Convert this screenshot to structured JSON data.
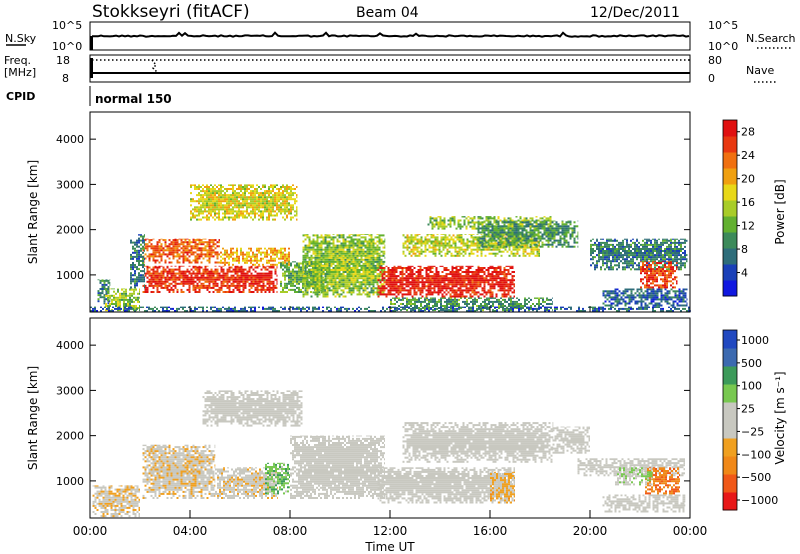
{
  "header": {
    "title": "Stokkseyri (fitACF)",
    "beam": "Beam 04",
    "date": "12/Dec/2011"
  },
  "strip_panels": {
    "nsky_label": "N.Sky",
    "nsky_ticks": [
      "10^5",
      "10^0"
    ],
    "nsearch_label": "N.Search",
    "nsearch_ticks": [
      "10^5",
      "10^0"
    ],
    "freq_label_line1": "Freq.",
    "freq_label_line2": "[MHz]",
    "freq_ticks": [
      "18",
      "8"
    ],
    "nave_label": "Nave",
    "nave_ticks": [
      "80",
      "0"
    ],
    "cpid_label": "CPID",
    "cpid_value": "normal 150"
  },
  "chart_data": [
    {
      "type": "heatmap",
      "title": "",
      "ylabel": "Slant Range [km]",
      "xlabel": "",
      "y_ticks": [
        "1000",
        "2000",
        "3000",
        "4000"
      ],
      "ylim": [
        180,
        4600
      ],
      "xlim": [
        0,
        24
      ],
      "colorbar_label": "Power [dB]",
      "colorbar_ticks": [
        "4",
        "8",
        "12",
        "16",
        "20",
        "24",
        "28"
      ],
      "colorbar_range": [
        0,
        30
      ],
      "colorbar_colors": [
        "#1018e0",
        "#1a40b8",
        "#2e6d7a",
        "#3c8a5a",
        "#62b030",
        "#a8cc28",
        "#e8d818",
        "#f0a010",
        "#f07010",
        "#e83810",
        "#e01010"
      ],
      "echo_regions": [
        {
          "t0": 0.3,
          "t1": 0.8,
          "r0": 350,
          "r1": 900,
          "db": 8
        },
        {
          "t0": 0.6,
          "t1": 2.0,
          "r0": 200,
          "r1": 700,
          "db": 14
        },
        {
          "t0": 2.1,
          "t1": 7.5,
          "r0": 600,
          "r1": 1200,
          "db": 27
        },
        {
          "t0": 2.1,
          "t1": 5.2,
          "r0": 1250,
          "r1": 1800,
          "db": 24
        },
        {
          "t0": 5.2,
          "t1": 8.0,
          "r0": 1200,
          "r1": 1600,
          "db": 20
        },
        {
          "t0": 1.6,
          "t1": 2.2,
          "r0": 700,
          "r1": 1900,
          "db": 8
        },
        {
          "t0": 7.6,
          "t1": 9.5,
          "r0": 600,
          "r1": 1300,
          "db": 12
        },
        {
          "t0": 4.0,
          "t1": 8.3,
          "r0": 2200,
          "r1": 3000,
          "db": 17
        },
        {
          "t0": 8.5,
          "t1": 11.8,
          "r0": 500,
          "r1": 1900,
          "db": 14
        },
        {
          "t0": 11.5,
          "t1": 17.0,
          "r0": 500,
          "r1": 1200,
          "db": 28
        },
        {
          "t0": 12.5,
          "t1": 18.0,
          "r0": 1400,
          "r1": 1900,
          "db": 16
        },
        {
          "t0": 13.5,
          "t1": 18.5,
          "r0": 2000,
          "r1": 2300,
          "db": 14
        },
        {
          "t0": 15.5,
          "t1": 19.5,
          "r0": 1600,
          "r1": 2200,
          "db": 10
        },
        {
          "t0": 12.0,
          "t1": 18.5,
          "r0": 200,
          "r1": 500,
          "db": 10
        },
        {
          "t0": 20.0,
          "t1": 23.9,
          "r0": 1100,
          "r1": 1800,
          "db": 8
        },
        {
          "t0": 22.0,
          "t1": 23.5,
          "r0": 700,
          "r1": 1300,
          "db": 26
        },
        {
          "t0": 20.5,
          "t1": 23.9,
          "r0": 300,
          "r1": 700,
          "db": 6
        },
        {
          "t0": 0.0,
          "t1": 24.0,
          "r0": 180,
          "r1": 300,
          "db": 6
        }
      ]
    },
    {
      "type": "heatmap",
      "title": "",
      "ylabel": "Slant Range [km]",
      "xlabel": "Time UT",
      "x_ticks": [
        "00:00",
        "04:00",
        "08:00",
        "12:00",
        "16:00",
        "20:00",
        "00:00"
      ],
      "y_ticks": [
        "1000",
        "2000",
        "3000",
        "4000"
      ],
      "ylim": [
        180,
        4600
      ],
      "xlim": [
        0,
        24
      ],
      "colorbar_label": "Velocity [m s⁻¹]",
      "colorbar_ticks": [
        "1000",
        "500",
        "100",
        "25",
        "−25",
        "−100",
        "−500",
        "−1000"
      ],
      "colorbar_range": [
        -1200,
        1200
      ],
      "colorbar_colors": [
        "#e81818",
        "#f05818",
        "#f08818",
        "#f0a020",
        "#c8c8c0",
        "#c8c8c0",
        "#78c850",
        "#3c9a5a",
        "#3c6ab0",
        "#2048c0"
      ],
      "echo_regions": [
        {
          "t0": 0.1,
          "t1": 2.0,
          "r0": 200,
          "r1": 900,
          "v": -150
        },
        {
          "t0": 2.1,
          "t1": 5.0,
          "r0": 600,
          "r1": 1800,
          "v": -150
        },
        {
          "t0": 5.0,
          "t1": 7.5,
          "r0": 600,
          "r1": 1300,
          "v": -120
        },
        {
          "t0": 7.0,
          "t1": 8.0,
          "r0": 700,
          "r1": 1400,
          "v": 400
        },
        {
          "t0": 4.5,
          "t1": 8.5,
          "r0": 2200,
          "r1": 3000,
          "v": 0
        },
        {
          "t0": 8.0,
          "t1": 11.8,
          "r0": 600,
          "r1": 2000,
          "v": 0
        },
        {
          "t0": 11.5,
          "t1": 17.0,
          "r0": 500,
          "r1": 1300,
          "v": 0
        },
        {
          "t0": 12.5,
          "t1": 18.5,
          "r0": 1400,
          "r1": 2300,
          "v": 0
        },
        {
          "t0": 16.0,
          "t1": 17.0,
          "r0": 500,
          "r1": 1200,
          "v": -300
        },
        {
          "t0": 18.5,
          "t1": 20.0,
          "r0": 1600,
          "r1": 2200,
          "v": 0
        },
        {
          "t0": 19.5,
          "t1": 23.8,
          "r0": 1100,
          "r1": 1500,
          "v": 0
        },
        {
          "t0": 22.2,
          "t1": 23.6,
          "r0": 700,
          "r1": 1300,
          "v": -700
        },
        {
          "t0": 21.0,
          "t1": 22.5,
          "r0": 900,
          "r1": 1300,
          "v": 200
        },
        {
          "t0": 20.5,
          "t1": 23.8,
          "r0": 300,
          "r1": 700,
          "v": -60
        }
      ]
    }
  ]
}
